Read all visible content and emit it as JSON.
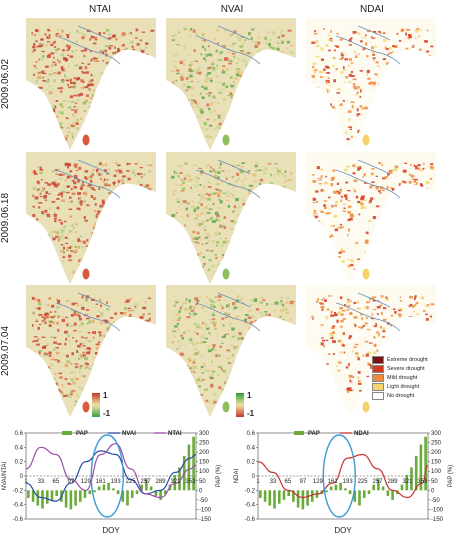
{
  "columns": [
    "NTAI",
    "NVAI",
    "NDAI"
  ],
  "rows": [
    "2009.06.02",
    "2009.06.18",
    "2009.07.04"
  ],
  "scalebars": [
    {
      "top": "1",
      "bottom": "-1",
      "colors": [
        "#c0392b",
        "#f1e3a0",
        "#3aa14a"
      ]
    },
    {
      "top": "1",
      "bottom": "-1",
      "colors": [
        "#2f9a3a",
        "#f1e3a0",
        "#c0392b"
      ]
    }
  ],
  "legend": [
    {
      "label": "Extreme drought",
      "color": "#7a1212"
    },
    {
      "label": "Severe drought",
      "color": "#d43a1e"
    },
    {
      "label": "Mild drought",
      "color": "#f08a3a"
    },
    {
      "label": "Light drought",
      "color": "#f6d36a"
    },
    {
      "label": "No drought",
      "color": "#ffffff"
    }
  ],
  "chart_data": [
    {
      "type": "line",
      "left_ylabel": "NVAI/NTAI",
      "right_ylabel": "PAP (%)",
      "xlabel": "DOY",
      "x_ticks": [
        "1",
        "33",
        "65",
        "97",
        "129",
        "161",
        "193",
        "225",
        "257",
        "289",
        "321",
        "353"
      ],
      "left_ylim": [
        -0.6,
        0.6
      ],
      "left_ticks": [
        "0.6",
        "0.4",
        "0.2",
        "0",
        "-0.2",
        "-0.4",
        "-0.6"
      ],
      "right_ylim": [
        -150,
        300
      ],
      "right_ticks": [
        "300",
        "250",
        "200",
        "150",
        "100",
        "50",
        "0",
        "-50",
        "-100",
        "-150"
      ],
      "series": [
        {
          "name": "PAP",
          "kind": "bar",
          "color": "#6aaa3a",
          "values": [
            -40,
            -60,
            -80,
            -95,
            -70,
            -50,
            -30,
            -60,
            -90,
            -100,
            -80,
            -60,
            -40,
            -20,
            -10,
            20,
            30,
            40,
            10,
            -20,
            -60,
            -80,
            -40,
            -20,
            30,
            60,
            20,
            -30,
            -50,
            -20,
            30,
            80,
            120,
            180,
            240,
            280
          ]
        },
        {
          "name": "NVAI",
          "kind": "line",
          "color": "#2b4aa8",
          "x": [
            1,
            33,
            65,
            97,
            129,
            161,
            193,
            225,
            257,
            289,
            321,
            353,
            365
          ],
          "y": [
            -0.1,
            -0.3,
            -0.35,
            -0.1,
            0.2,
            0.35,
            0.3,
            -0.05,
            -0.25,
            -0.2,
            0.05,
            0.25,
            0.3
          ]
        },
        {
          "name": "NTAI",
          "kind": "line",
          "color": "#9a4fa8",
          "x": [
            1,
            33,
            65,
            97,
            129,
            161,
            193,
            225,
            257,
            289,
            321,
            353,
            365
          ],
          "y": [
            0.1,
            0.4,
            0.3,
            -0.05,
            -0.2,
            0.3,
            0.45,
            0.1,
            -0.25,
            -0.3,
            -0.1,
            0.1,
            0.15
          ]
        }
      ],
      "highlight_x": 175
    },
    {
      "type": "line",
      "left_ylabel": "NDAI",
      "right_ylabel": "PAP (%)",
      "xlabel": "DOY",
      "x_ticks": [
        "1",
        "33",
        "65",
        "97",
        "129",
        "161",
        "193",
        "225",
        "257",
        "289",
        "321",
        "353"
      ],
      "left_ylim": [
        -0.6,
        0.6
      ],
      "left_ticks": [
        "0.6",
        "0.4",
        "0.2",
        "0",
        "-0.2",
        "-0.4",
        "-0.6"
      ],
      "right_ylim": [
        -150,
        300
      ],
      "right_ticks": [
        "300",
        "250",
        "200",
        "150",
        "100",
        "50",
        "0",
        "-50",
        "-100",
        "-150"
      ],
      "series": [
        {
          "name": "PAP",
          "kind": "bar",
          "color": "#6aaa3a",
          "values": [
            -40,
            -60,
            -80,
            -95,
            -70,
            -50,
            -30,
            -60,
            -90,
            -100,
            -80,
            -60,
            -40,
            -20,
            -10,
            20,
            30,
            40,
            10,
            -20,
            -60,
            -80,
            -40,
            -20,
            30,
            60,
            20,
            -30,
            -50,
            -20,
            30,
            80,
            120,
            180,
            240,
            280
          ]
        },
        {
          "name": "NDAI",
          "kind": "line",
          "color": "#c83232",
          "x": [
            1,
            33,
            65,
            97,
            129,
            161,
            193,
            225,
            257,
            289,
            321,
            353,
            365
          ],
          "y": [
            0.2,
            0.05,
            -0.2,
            -0.3,
            -0.25,
            -0.1,
            0.25,
            0.3,
            0.1,
            -0.2,
            -0.3,
            -0.1,
            0.15
          ]
        }
      ],
      "highlight_x": 175
    }
  ]
}
